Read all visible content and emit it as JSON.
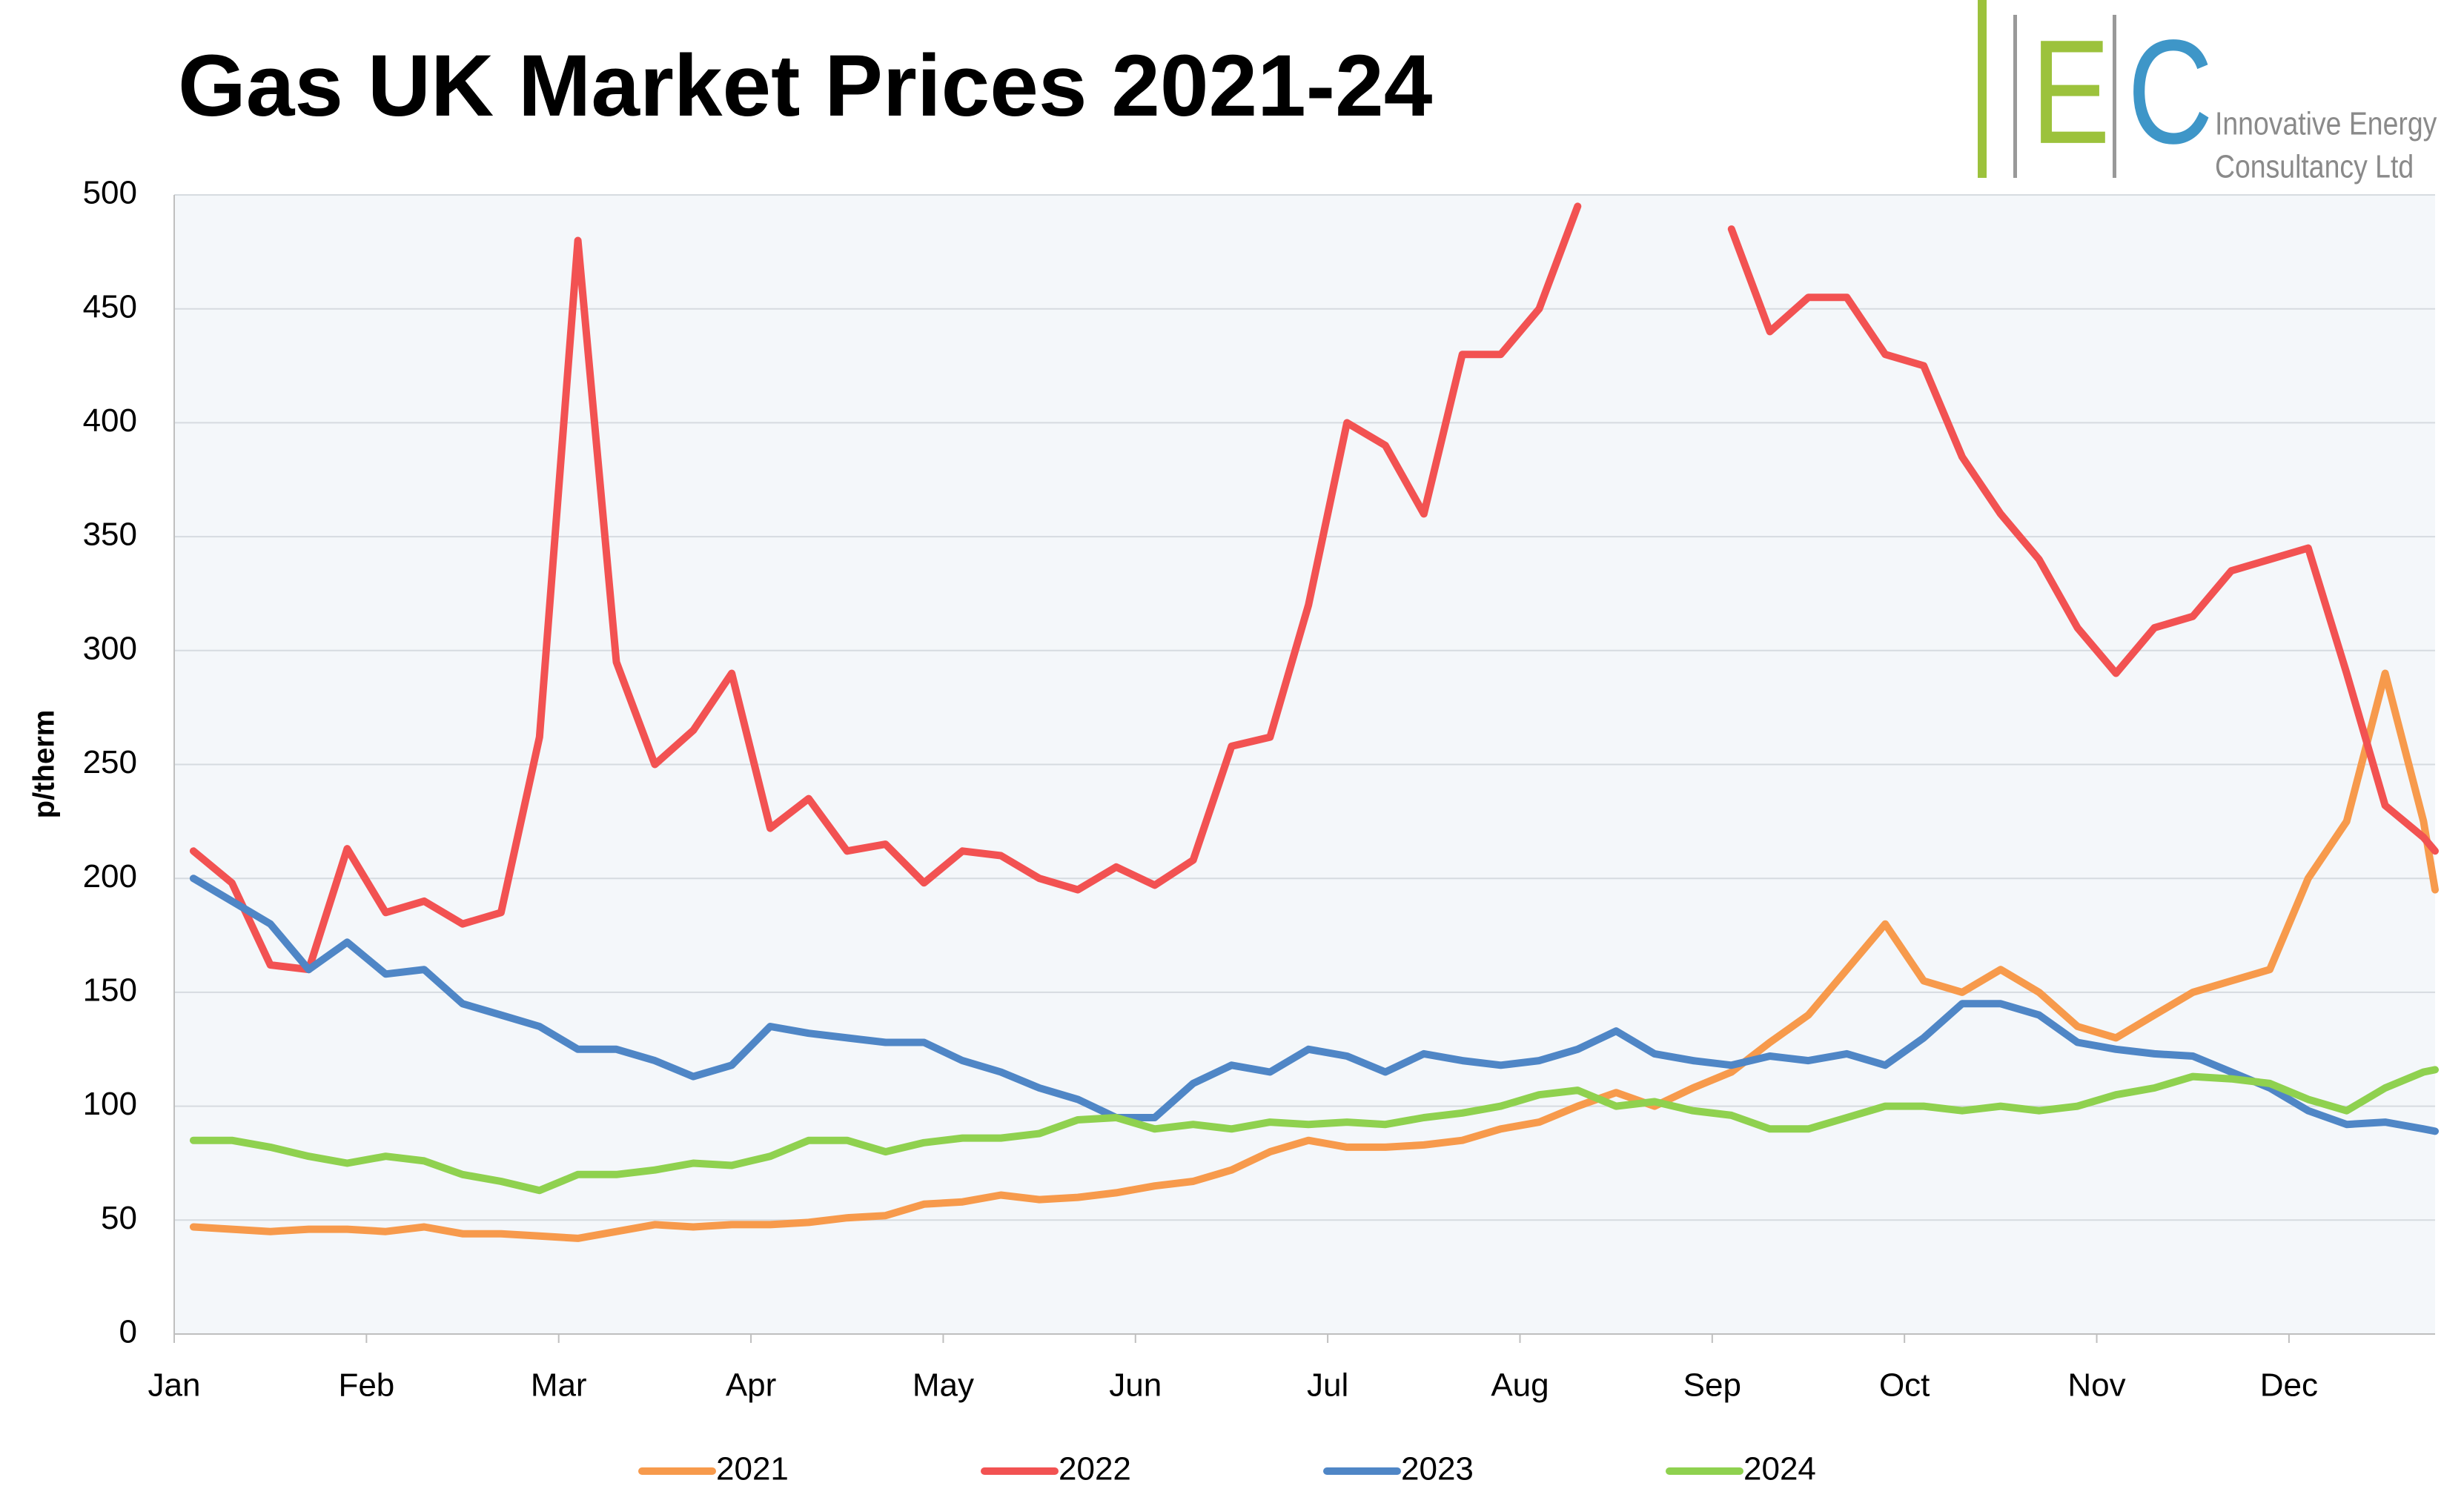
{
  "chart_data": {
    "type": "line",
    "title": "Gas UK Market Prices 2021-24",
    "ylabel": "p/therm",
    "x": [
      0.1,
      0.3,
      0.5,
      0.7,
      0.9,
      1.1,
      1.3,
      1.5,
      1.7,
      1.9,
      2.1,
      2.3,
      2.5,
      2.7,
      2.9,
      3.1,
      3.3,
      3.5,
      3.7,
      3.9,
      4.1,
      4.3,
      4.5,
      4.7,
      4.9,
      5.1,
      5.3,
      5.5,
      5.7,
      5.9,
      6.1,
      6.3,
      6.5,
      6.7,
      6.9,
      7.1,
      7.3,
      7.5,
      7.7,
      7.9,
      8.1,
      8.3,
      8.5,
      8.7,
      8.9,
      9.1,
      9.3,
      9.5,
      9.7,
      9.9,
      10.1,
      10.3,
      10.5,
      10.7,
      10.9,
      11.1,
      11.3,
      11.5,
      11.7,
      11.76
    ],
    "xlim": [
      0,
      11.76
    ],
    "xticks": [
      {
        "value": 0,
        "label": "Jan"
      },
      {
        "value": 1,
        "label": "Feb"
      },
      {
        "value": 2,
        "label": "Mar"
      },
      {
        "value": 3,
        "label": "Apr"
      },
      {
        "value": 4,
        "label": "May"
      },
      {
        "value": 5,
        "label": "Jun"
      },
      {
        "value": 6,
        "label": "Jul"
      },
      {
        "value": 7,
        "label": "Aug"
      },
      {
        "value": 8,
        "label": "Sep"
      },
      {
        "value": 9,
        "label": "Oct"
      },
      {
        "value": 10,
        "label": "Nov"
      },
      {
        "value": 11,
        "label": "Dec"
      }
    ],
    "ylim": [
      0,
      500
    ],
    "yticks": [
      0,
      50,
      100,
      150,
      200,
      250,
      300,
      350,
      400,
      450,
      500
    ],
    "grid": true,
    "legend": "bottom",
    "series": [
      {
        "name": "2021",
        "color": "#f79a4c",
        "values": [
          47,
          46,
          45,
          46,
          46,
          45,
          47,
          44,
          44,
          43,
          42,
          45,
          48,
          47,
          48,
          48,
          49,
          51,
          52,
          57,
          58,
          61,
          59,
          60,
          62,
          65,
          67,
          72,
          80,
          85,
          82,
          82,
          83,
          85,
          90,
          93,
          100,
          106,
          100,
          108,
          115,
          128,
          140,
          160,
          180,
          155,
          150,
          160,
          150,
          135,
          130,
          140,
          150,
          155,
          160,
          200,
          225,
          290,
          225,
          195
        ]
      },
      {
        "name": "2022",
        "color": "#f25252",
        "values": [
          212,
          198,
          162,
          160,
          213,
          185,
          190,
          180,
          185,
          262,
          480,
          295,
          250,
          265,
          290,
          222,
          235,
          212,
          215,
          198,
          212,
          210,
          200,
          195,
          205,
          197,
          208,
          258,
          262,
          320,
          400,
          390,
          360,
          430,
          430,
          450,
          495,
          null,
          null,
          null,
          485,
          440,
          455,
          455,
          430,
          425,
          385,
          360,
          340,
          310,
          290,
          310,
          315,
          335,
          340,
          345,
          290,
          232,
          218,
          212
        ]
      },
      {
        "name": "2023",
        "color": "#4f86c6",
        "values": [
          200,
          190,
          180,
          160,
          172,
          158,
          160,
          145,
          140,
          135,
          125,
          125,
          120,
          113,
          118,
          135,
          132,
          130,
          128,
          128,
          120,
          115,
          108,
          103,
          95,
          95,
          110,
          118,
          115,
          125,
          122,
          115,
          123,
          120,
          118,
          120,
          125,
          133,
          123,
          120,
          118,
          122,
          120,
          123,
          118,
          130,
          145,
          145,
          140,
          128,
          125,
          123,
          122,
          115,
          108,
          98,
          92,
          93,
          90,
          89
        ]
      },
      {
        "name": "2024",
        "color": "#8fd14f",
        "values": [
          85,
          85,
          82,
          78,
          75,
          78,
          76,
          70,
          67,
          63,
          70,
          70,
          72,
          75,
          74,
          78,
          85,
          85,
          80,
          84,
          86,
          86,
          88,
          94,
          95,
          90,
          92,
          90,
          93,
          92,
          93,
          92,
          95,
          97,
          100,
          105,
          107,
          100,
          102,
          98,
          96,
          90,
          90,
          95,
          100,
          100,
          98,
          100,
          98,
          100,
          105,
          108,
          113,
          112,
          110,
          103,
          98,
          108,
          115,
          116
        ]
      }
    ]
  },
  "logo": {
    "letters": [
      "E",
      "C"
    ],
    "lines": [
      "Innovative Energy",
      "Consultancy Ltd"
    ]
  }
}
